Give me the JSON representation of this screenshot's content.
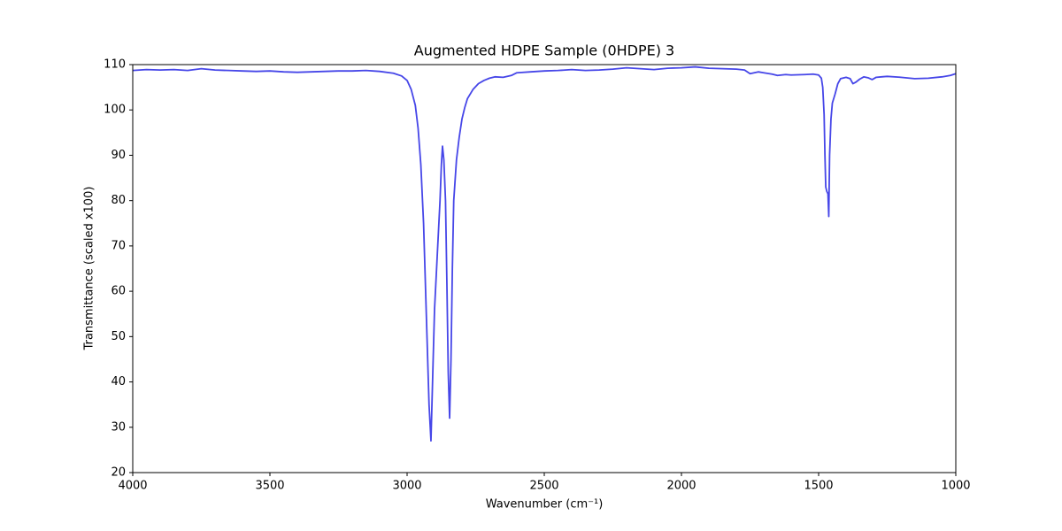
{
  "chart_data": {
    "type": "line",
    "title": "Augmented HDPE Sample (0HDPE) 3",
    "x_label": "Wavenumber (cm⁻¹)",
    "y_label": "Transmittance (scaled x100)",
    "x": [
      4000,
      3950,
      3900,
      3850,
      3800,
      3750,
      3700,
      3650,
      3600,
      3550,
      3500,
      3450,
      3400,
      3350,
      3300,
      3250,
      3200,
      3150,
      3100,
      3050,
      3020,
      3000,
      2985,
      2970,
      2960,
      2950,
      2940,
      2930,
      2920,
      2913,
      2905,
      2900,
      2890,
      2880,
      2875,
      2871,
      2866,
      2860,
      2855,
      2850,
      2845,
      2840,
      2835,
      2830,
      2820,
      2810,
      2800,
      2790,
      2780,
      2760,
      2740,
      2720,
      2700,
      2680,
      2650,
      2620,
      2600,
      2550,
      2500,
      2450,
      2400,
      2350,
      2300,
      2250,
      2200,
      2150,
      2100,
      2050,
      2000,
      1950,
      1900,
      1850,
      1800,
      1770,
      1750,
      1720,
      1700,
      1670,
      1650,
      1620,
      1600,
      1550,
      1520,
      1500,
      1490,
      1485,
      1480,
      1477,
      1474,
      1470,
      1466,
      1463,
      1460,
      1455,
      1450,
      1440,
      1430,
      1420,
      1400,
      1385,
      1375,
      1365,
      1350,
      1335,
      1320,
      1305,
      1290,
      1270,
      1250,
      1200,
      1150,
      1100,
      1050,
      1020,
      1000
    ],
    "series": [
      {
        "name": "0HDPE 3",
        "color": "#4646e8",
        "values": [
          108.7,
          108.9,
          108.8,
          108.9,
          108.7,
          109.1,
          108.8,
          108.7,
          108.6,
          108.5,
          108.6,
          108.4,
          108.3,
          108.4,
          108.5,
          108.6,
          108.6,
          108.7,
          108.5,
          108.1,
          107.5,
          106.5,
          104.5,
          101,
          96,
          88,
          75,
          55,
          35,
          27,
          45,
          56,
          68,
          80,
          88,
          92,
          89,
          80,
          62,
          42,
          32,
          45,
          65,
          80,
          89,
          94,
          98,
          100.5,
          102.5,
          104.5,
          105.8,
          106.5,
          107,
          107.3,
          107.2,
          107.6,
          108.2,
          108.4,
          108.6,
          108.7,
          108.9,
          108.7,
          108.8,
          109.0,
          109.3,
          109.1,
          108.9,
          109.2,
          109.3,
          109.5,
          109.2,
          109.1,
          109.0,
          108.8,
          108.0,
          108.4,
          108.2,
          107.9,
          107.6,
          107.8,
          107.7,
          107.8,
          107.9,
          107.7,
          107.0,
          105,
          99,
          90,
          83,
          82,
          81.5,
          76.5,
          90,
          98,
          101.5,
          103.5,
          105.8,
          106.9,
          107.2,
          106.9,
          105.8,
          106.1,
          106.8,
          107.3,
          107.1,
          106.7,
          107.2,
          107.3,
          107.4,
          107.2,
          106.9,
          107.0,
          107.3,
          107.6,
          108.0
        ]
      }
    ],
    "xlim": [
      4000,
      1000
    ],
    "ylim": [
      20,
      110
    ],
    "xticks": [
      4000,
      3500,
      3000,
      2500,
      2000,
      1500,
      1000
    ],
    "yticks": [
      20,
      30,
      40,
      50,
      60,
      70,
      80,
      90,
      100,
      110
    ],
    "grid": false
  }
}
